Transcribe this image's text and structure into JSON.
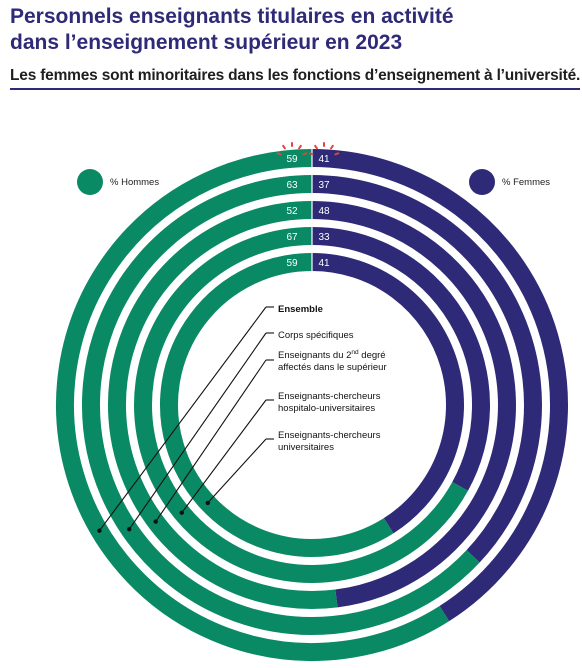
{
  "header": {
    "title_line1": "Personnels enseignants titulaires en activité",
    "title_line2": "dans l’enseignement supérieur en 2023",
    "subtitle": "Les femmes sont minoritaires dans les fonctions d’enseignement à l’université."
  },
  "colors": {
    "hommes": "#0a8a64",
    "femmes": "#2e2a78",
    "highlight": "#e0463c"
  },
  "chart_data": {
    "type": "pie",
    "variant": "concentric-rings",
    "legend": [
      {
        "key": "hommes",
        "label": "% Hommes",
        "color": "#0a8a64",
        "position": "top-left"
      },
      {
        "key": "femmes",
        "label": "% Femmes",
        "color": "#2e2a78",
        "position": "top-right"
      }
    ],
    "rings": [
      {
        "label": "Ensemble",
        "hommes": 59,
        "femmes": 41,
        "bold": true,
        "highlight": true
      },
      {
        "label": "Corps spécifiques",
        "hommes": 63,
        "femmes": 37
      },
      {
        "label": "Enseignants du 2nd degré affectés dans le supérieur",
        "label_line1": "Enseignants du 2",
        "label_sup": "nd",
        "label_line1_end": " degré",
        "label_line2": "affectés dans le supérieur",
        "hommes": 52,
        "femmes": 48
      },
      {
        "label": "Enseignants-chercheurs hospitalo-universitaires",
        "label_line1": "Enseignants-chercheurs",
        "label_line2": "hospitalo-universitaires",
        "hommes": 67,
        "femmes": 33
      },
      {
        "label": "Enseignants-chercheurs universitaires",
        "label_line1": "Enseignants-chercheurs",
        "label_line2": "universitaires",
        "hommes": 59,
        "femmes": 41
      }
    ]
  }
}
